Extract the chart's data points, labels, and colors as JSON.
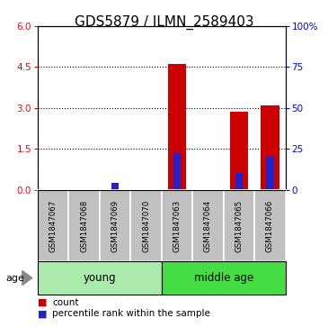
{
  "title": "GDS5879 / ILMN_2589403",
  "samples": [
    "GSM1847067",
    "GSM1847068",
    "GSM1847069",
    "GSM1847070",
    "GSM1847063",
    "GSM1847064",
    "GSM1847065",
    "GSM1847066"
  ],
  "groups": [
    {
      "name": "young",
      "indices": [
        0,
        1,
        2,
        3
      ]
    },
    {
      "name": "middle age",
      "indices": [
        4,
        5,
        6,
        7
      ]
    }
  ],
  "red_values": [
    0.0,
    0.0,
    0.0,
    0.0,
    4.6,
    0.0,
    2.85,
    3.1
  ],
  "blue_values_pct": [
    0.0,
    0.0,
    4.0,
    0.0,
    22.5,
    0.0,
    10.0,
    20.0
  ],
  "ylim_left": [
    0,
    6
  ],
  "ylim_right": [
    0,
    100
  ],
  "yticks_left": [
    0,
    1.5,
    3.0,
    4.5,
    6.0
  ],
  "yticks_right": [
    0,
    25,
    50,
    75,
    100
  ],
  "bar_color_red": "#CC0000",
  "bar_color_blue": "#2222CC",
  "sample_bg_color": "#C0C0C0",
  "group_bg_color_young": "#AAEAAA",
  "group_bg_color_middle": "#44DD44",
  "title_fontsize": 11,
  "bar_width": 0.6,
  "blue_bar_width": 0.25
}
